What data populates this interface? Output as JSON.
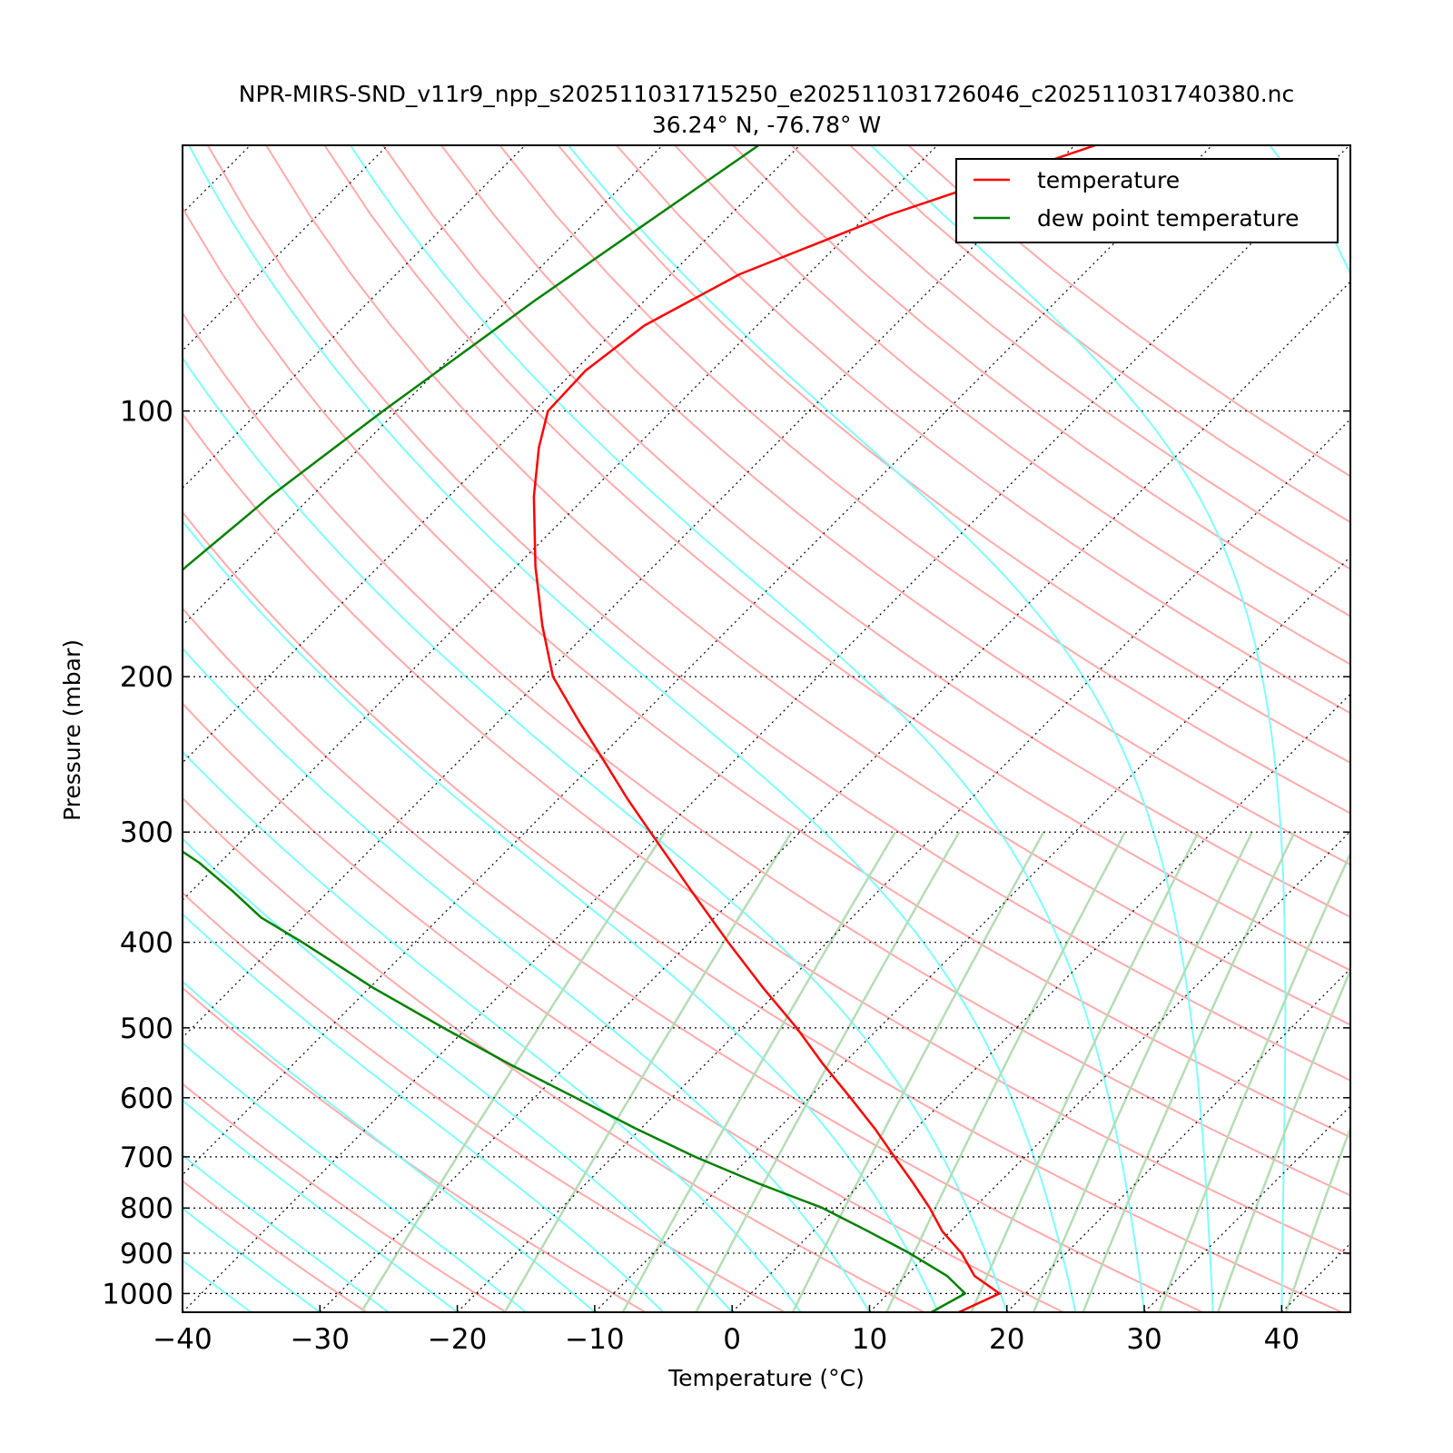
{
  "chart_data": {
    "type": "line",
    "title": "NPR-MIRS-SND_v11r9_npp_s202511031715250_e202511031726046_c202511031740380.nc",
    "subtitle": "36.24° N, -76.78° W",
    "xlabel": "Temperature (°C)",
    "ylabel": "Pressure (mbar)",
    "xlim": [
      -40,
      45
    ],
    "ylim": [
      1050,
      50
    ],
    "y_scale": "log",
    "skew": true,
    "grid": true,
    "xticks": [
      -40,
      -30,
      -20,
      -10,
      0,
      10,
      20,
      30,
      40
    ],
    "xtick_labels": [
      "−40",
      "−30",
      "−20",
      "−10",
      "0",
      "10",
      "20",
      "30",
      "40"
    ],
    "yticks": [
      100,
      200,
      300,
      400,
      500,
      600,
      700,
      800,
      900,
      1000
    ],
    "ytick_labels": [
      "100",
      "200",
      "300",
      "400",
      "500",
      "600",
      "700",
      "800",
      "900",
      "1000"
    ],
    "legend_position": "top-right",
    "series": [
      {
        "name": "temperature",
        "color": "#ff0000",
        "pressure": [
          1050,
          1000,
          955,
          900,
          850,
          800,
          750,
          700,
          650,
          600,
          550,
          500,
          450,
          400,
          350,
          300,
          275,
          250,
          225,
          200,
          175,
          150,
          125,
          110,
          100,
          90,
          80,
          70,
          60,
          50
        ],
        "temperature": [
          16.5,
          18.1,
          15.0,
          12.4,
          9.4,
          6.8,
          3.8,
          0.5,
          -3.0,
          -7.0,
          -11.4,
          -16.0,
          -21.4,
          -27.2,
          -33.6,
          -40.9,
          -45.0,
          -49.3,
          -54.1,
          -59.3,
          -63.8,
          -68.6,
          -73.8,
          -77.0,
          -79.0,
          -79.2,
          -78.2,
          -75.0,
          -68.5,
          -58.5
        ]
      },
      {
        "name": "dew point temperature",
        "color": "#008000",
        "pressure": [
          1050,
          1000,
          955,
          900,
          850,
          800,
          750,
          700,
          650,
          600,
          550,
          500,
          450,
          400,
          375,
          350,
          325,
          300,
          275,
          250,
          225,
          200,
          175,
          150,
          125,
          100,
          75,
          50
        ],
        "temperature": [
          14.5,
          15.6,
          13.0,
          8.6,
          4.0,
          -1.0,
          -7.5,
          -14.0,
          -20.4,
          -27.0,
          -34.2,
          -41.7,
          -49.8,
          -58.2,
          -63.0,
          -67.0,
          -71.5,
          -77.1,
          -82.5,
          -87.3,
          -91.0,
          -93.5,
          -94.5,
          -94.0,
          -93.0,
          -91.0,
          -88.0,
          -83.0
        ]
      }
    ]
  }
}
